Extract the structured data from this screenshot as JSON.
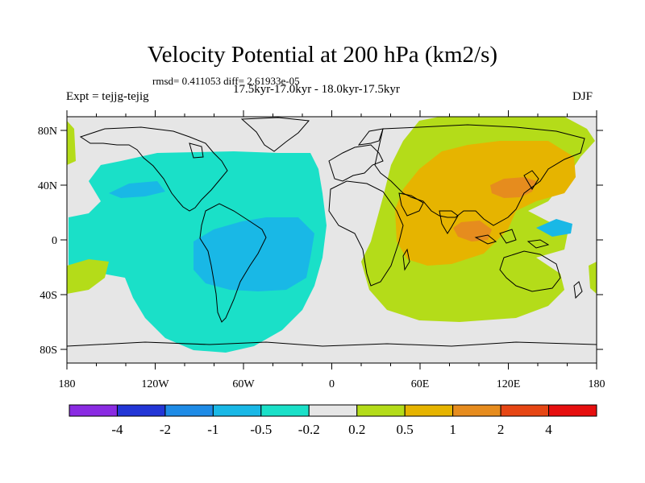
{
  "chart_data": {
    "type": "heatmap",
    "title": "Velocity Potential at 200 hPa (km2/s)",
    "subtitle_stats": "rmsd= 0.411053 diff= 2.61933e-05",
    "left_label": "Expt = tejjg-tejig",
    "center_label": "17.5kyr-17.0kyr - 18.0kyr-17.5kyr",
    "right_label": "DJF",
    "projection": "cylindrical equidistant",
    "x_axis": {
      "range": [
        -180,
        180
      ],
      "ticks": [
        {
          "value": -180,
          "label": "180"
        },
        {
          "value": -120,
          "label": "120W"
        },
        {
          "value": -60,
          "label": "60W"
        },
        {
          "value": 0,
          "label": "0"
        },
        {
          "value": 60,
          "label": "60E"
        },
        {
          "value": 120,
          "label": "120E"
        },
        {
          "value": 180,
          "label": "180"
        }
      ]
    },
    "y_axis": {
      "range": [
        -90,
        90
      ],
      "ticks": [
        {
          "value": 80,
          "label": "80N"
        },
        {
          "value": 40,
          "label": "40N"
        },
        {
          "value": 0,
          "label": "0"
        },
        {
          "value": -40,
          "label": "40S"
        },
        {
          "value": -80,
          "label": "80S"
        }
      ]
    },
    "colorbar": {
      "colors": [
        "#8a2be2",
        "#2336d6",
        "#1e8be6",
        "#19b8e6",
        "#1ae0c8",
        "#e6e6e6",
        "#b4dc19",
        "#e6b400",
        "#e68c1e",
        "#e64614",
        "#e60f0f"
      ],
      "labels": [
        "-4",
        "-2",
        "-1",
        "-0.5",
        "-0.2",
        "0.2",
        "0.5",
        "1",
        "2",
        "4"
      ]
    },
    "regions": [
      {
        "name": "western hemisphere negative",
        "level": "-0.5 to -0.2",
        "color_index": 4,
        "center": [
          -60,
          0
        ],
        "sign": "negative"
      },
      {
        "name": "south america minimum",
        "level": "-1 to -0.5",
        "color_index": 3,
        "center": [
          -55,
          -15
        ],
        "sign": "negative"
      },
      {
        "name": "north pacific weak minimum",
        "level": "-1 to -0.5",
        "color_index": 3,
        "center": [
          -140,
          28
        ],
        "sign": "negative"
      },
      {
        "name": "eastern hemisphere positive",
        "level": "0.2 to 0.5",
        "color_index": 6,
        "center": [
          75,
          10
        ],
        "sign": "positive"
      },
      {
        "name": "asia maximum",
        "level": "0.5 to 1",
        "color_index": 7,
        "center": [
          80,
          15
        ],
        "sign": "positive"
      },
      {
        "name": "east asia peak",
        "level": "1 to 2",
        "color_index": 8,
        "center": [
          120,
          33
        ],
        "sign": "positive"
      },
      {
        "name": "maritime continent peak",
        "level": "1 to 2",
        "color_index": 8,
        "center": [
          95,
          5
        ],
        "sign": "positive"
      },
      {
        "name": "west pacific minimum",
        "level": "-1 to -0.5",
        "color_index": 3,
        "center": [
          150,
          8
        ],
        "sign": "negative"
      }
    ]
  }
}
